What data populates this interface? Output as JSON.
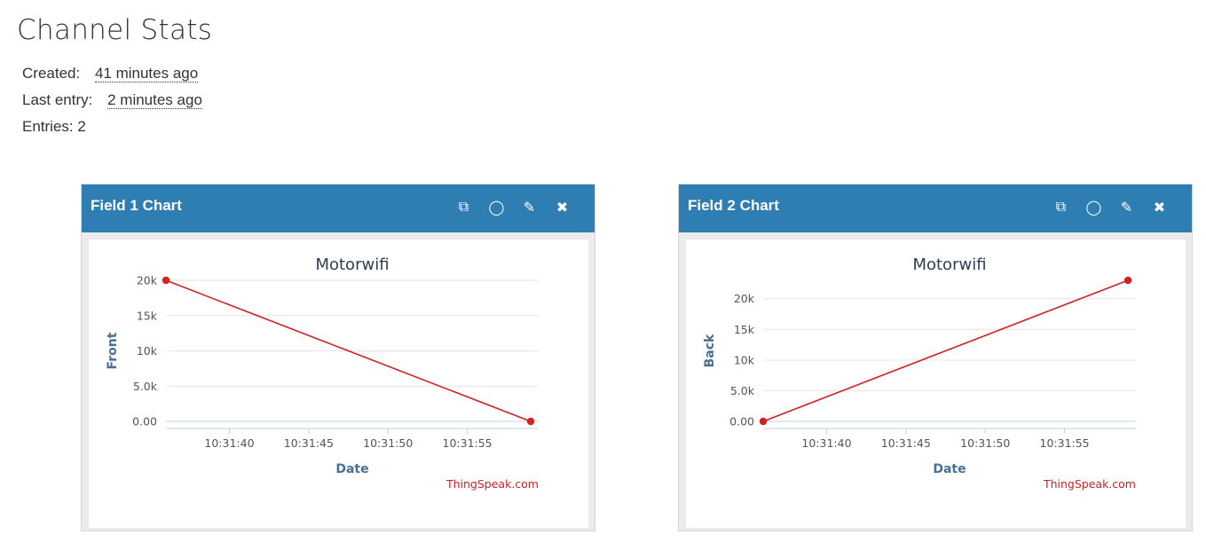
{
  "page": {
    "title": "Channel Stats"
  },
  "stats": {
    "created_label": "Created:",
    "created_value": "41 minutes ago",
    "last_entry_label": "Last entry:",
    "last_entry_value": "2 minutes ago",
    "entries_text": "Entries: 2"
  },
  "panels": [
    {
      "header": "Field 1 Chart",
      "tools": [
        {
          "icon": "external-link-icon",
          "glyph": "⧉"
        },
        {
          "icon": "comment-icon",
          "glyph": "◯"
        },
        {
          "icon": "pencil-icon",
          "glyph": "✎"
        },
        {
          "icon": "close-icon",
          "glyph": "✖"
        }
      ]
    },
    {
      "header": "Field 2 Chart",
      "tools": [
        {
          "icon": "external-link-icon",
          "glyph": "⧉"
        },
        {
          "icon": "comment-icon",
          "glyph": "◯"
        },
        {
          "icon": "pencil-icon",
          "glyph": "✎"
        },
        {
          "icon": "close-icon",
          "glyph": "✖"
        }
      ]
    }
  ],
  "colors": {
    "header": "#2e7db3",
    "series": "#d62020",
    "credit": "#cc2222"
  },
  "chart_data": [
    {
      "type": "line",
      "title": "Motorwifi",
      "xlabel": "Date",
      "ylabel": "Front",
      "x_ticks": [
        "10:31:40",
        "10:31:45",
        "10:31:50",
        "10:31:55"
      ],
      "y_ticks": [
        "0.00",
        "5.0k",
        "10k",
        "15k",
        "20k"
      ],
      "y_tick_values": [
        0,
        5000,
        10000,
        15000,
        20000
      ],
      "ylim": [
        0,
        20000
      ],
      "xlim_seconds": [
        36,
        59.5
      ],
      "x_tick_seconds": [
        40,
        45,
        50,
        55
      ],
      "series": [
        {
          "x": [
            "10:31:36",
            "10:31:59"
          ],
          "y": [
            20000,
            0
          ]
        }
      ],
      "credit": "ThingSpeak.com",
      "grid": true
    },
    {
      "type": "line",
      "title": "Motorwifi",
      "xlabel": "Date",
      "ylabel": "Back",
      "x_ticks": [
        "10:31:40",
        "10:31:45",
        "10:31:50",
        "10:31:55"
      ],
      "y_ticks": [
        "0.00",
        "5.0k",
        "10k",
        "15k",
        "20k"
      ],
      "y_tick_values": [
        0,
        5000,
        10000,
        15000,
        20000
      ],
      "ylim": [
        0,
        23000
      ],
      "xlim_seconds": [
        36,
        59.5
      ],
      "x_tick_seconds": [
        40,
        45,
        50,
        55
      ],
      "series": [
        {
          "x": [
            "10:31:36",
            "10:31:59"
          ],
          "y": [
            0,
            23000
          ]
        }
      ],
      "credit": "ThingSpeak.com",
      "grid": true
    }
  ]
}
